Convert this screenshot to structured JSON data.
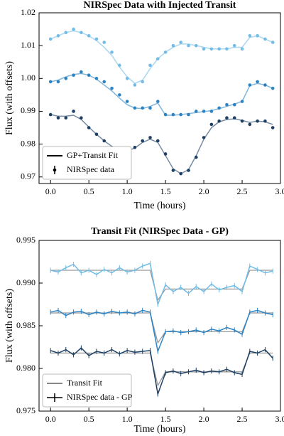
{
  "chart_data": [
    {
      "type": "scatter",
      "title": "NIRSpec Data with Injected Transit",
      "xlabel": "Time (hours)",
      "ylabel": "Flux (with offsets)",
      "x": [
        0,
        0.1,
        0.2,
        0.3,
        0.4,
        0.5,
        0.6,
        0.7,
        0.8,
        0.9,
        1.0,
        1.1,
        1.2,
        1.3,
        1.4,
        1.5,
        1.6,
        1.7,
        1.8,
        1.9,
        2.0,
        2.1,
        2.2,
        2.3,
        2.4,
        2.5,
        2.6,
        2.7,
        2.8,
        2.9
      ],
      "xlim": [
        -0.15,
        3.0
      ],
      "ylim": [
        0.968,
        1.02
      ],
      "xticks": [
        {
          "value": 0,
          "label": "0.0"
        },
        0.5,
        {
          "value": 1,
          "label": "1.0"
        },
        1.5,
        {
          "value": 2,
          "label": "2.0"
        },
        2.5,
        {
          "value": 3,
          "label": "3.0"
        }
      ],
      "yticks": [
        0.97,
        0.98,
        0.99,
        {
          "value": 1,
          "label": "1.00"
        },
        1.01,
        {
          "value": 1.02,
          "label": "1.02"
        }
      ],
      "legend": [
        {
          "label": "GP+Transit Fit",
          "color": "#000000"
        },
        {
          "label": "NIRSpec data",
          "color": "#000000"
        }
      ],
      "series": [
        {
          "color": "#72bce6",
          "values": [
            1.012,
            1.013,
            1.014,
            1.015,
            1.014,
            1.013,
            1.012,
            1.011,
            1.008,
            1.004,
            1.0,
            0.998,
            0.999,
            1.004,
            1.006,
            1.008,
            1.01,
            1.011,
            1.01,
            1.01,
            1.009,
            1.009,
            1.009,
            1.009,
            1.01,
            1.009,
            1.013,
            1.013,
            1.012,
            1.011
          ],
          "fit": [
            1.012,
            1.013,
            1.014,
            1.0145,
            1.014,
            1.013,
            1.0115,
            1.0095,
            1.007,
            1.0035,
            1.0005,
            0.9985,
            0.9995,
            1.003,
            1.006,
            1.008,
            1.0095,
            1.0105,
            1.0105,
            1.01,
            1.0095,
            1.009,
            1.009,
            1.009,
            1.0095,
            1.0095,
            1.0125,
            1.013,
            1.012,
            1.011
          ]
        },
        {
          "color": "#2b83c4",
          "values": [
            0.999,
            0.999,
            1.0,
            1.001,
            1.002,
            1.001,
            1.0,
            0.999,
            0.997,
            0.995,
            0.993,
            0.991,
            0.991,
            0.991,
            0.993,
            0.989,
            0.989,
            0.989,
            0.989,
            0.99,
            0.99,
            0.99,
            0.991,
            0.992,
            0.992,
            0.993,
            0.998,
            0.999,
            0.998,
            0.997
          ],
          "fit": [
            0.999,
            0.9995,
            1.0005,
            1.0012,
            1.0015,
            1.001,
            0.9998,
            0.998,
            0.9962,
            0.994,
            0.992,
            0.991,
            0.9908,
            0.9915,
            0.9925,
            0.9888,
            0.9888,
            0.989,
            0.9893,
            0.9896,
            0.9899,
            0.9902,
            0.9908,
            0.9915,
            0.9922,
            0.993,
            0.9978,
            0.9985,
            0.998,
            0.997
          ]
        },
        {
          "color": "#1c3f63",
          "values": [
            0.989,
            0.988,
            0.988,
            0.99,
            0.988,
            0.985,
            0.983,
            0.981,
            0.979,
            0.978,
            0.978,
            0.979,
            0.981,
            0.982,
            0.981,
            0.977,
            0.972,
            0.971,
            0.972,
            0.976,
            0.982,
            0.986,
            0.987,
            0.988,
            0.988,
            0.987,
            0.986,
            0.987,
            0.987,
            0.985
          ],
          "fit": [
            0.989,
            0.9885,
            0.9885,
            0.9888,
            0.9875,
            0.9852,
            0.983,
            0.981,
            0.9793,
            0.9783,
            0.978,
            0.9788,
            0.9805,
            0.9815,
            0.9805,
            0.9765,
            0.9725,
            0.971,
            0.9722,
            0.9765,
            0.9815,
            0.985,
            0.9868,
            0.9875,
            0.9877,
            0.9872,
            0.9866,
            0.987,
            0.9868,
            0.986
          ]
        }
      ]
    },
    {
      "type": "errorbar",
      "title": "Transit Fit (NIRSpec Data - GP)",
      "xlabel": "Time (hours)",
      "ylabel": "Flux (with offsets)",
      "x": [
        0,
        0.1,
        0.2,
        0.3,
        0.4,
        0.5,
        0.6,
        0.7,
        0.8,
        0.9,
        1.0,
        1.1,
        1.2,
        1.3,
        1.4,
        1.5,
        1.6,
        1.7,
        1.8,
        1.9,
        2.0,
        2.1,
        2.2,
        2.3,
        2.4,
        2.5,
        2.6,
        2.7,
        2.8,
        2.9
      ],
      "xlim": [
        -0.15,
        3.0
      ],
      "ylim": [
        0.975,
        0.995
      ],
      "xticks": [
        {
          "value": 0,
          "label": "0.0"
        },
        0.5,
        {
          "value": 1,
          "label": "1.0"
        },
        1.5,
        {
          "value": 2,
          "label": "2.0"
        },
        2.5,
        {
          "value": 3,
          "label": "3.0"
        }
      ],
      "yticks": [
        0.975,
        {
          "value": 0.98,
          "label": "0.980"
        },
        0.985,
        {
          "value": 0.99,
          "label": "0.990"
        },
        0.995
      ],
      "legend": [
        {
          "label": "Transit Fit",
          "color": "#888888"
        },
        {
          "label": "NIRSpec data - GP",
          "color": "#000000"
        }
      ],
      "series": [
        {
          "color": "#72bce6",
          "error": 0.0003,
          "values": [
            0.9915,
            0.9913,
            0.9918,
            0.9922,
            0.9912,
            0.9915,
            0.991,
            0.9916,
            0.9912,
            0.9918,
            0.9913,
            0.9915,
            0.992,
            0.9923,
            0.9875,
            0.9898,
            0.989,
            0.9895,
            0.9888,
            0.9896,
            0.989,
            0.9899,
            0.9892,
            0.9895,
            0.9897,
            0.989,
            0.992,
            0.9916,
            0.9912,
            0.9914
          ],
          "fit": [
            0.9915,
            0.9915,
            0.9915,
            0.9915,
            0.9915,
            0.9915,
            0.9915,
            0.9915,
            0.9915,
            0.9915,
            0.9915,
            0.9915,
            0.9915,
            0.9915,
            0.988,
            0.9893,
            0.9893,
            0.9893,
            0.9893,
            0.9893,
            0.9893,
            0.9893,
            0.9893,
            0.9893,
            0.9893,
            0.9893,
            0.9915,
            0.9915,
            0.9915,
            0.9915
          ]
        },
        {
          "color": "#2b83c4",
          "error": 0.0003,
          "values": [
            0.9866,
            0.9868,
            0.9862,
            0.9866,
            0.9867,
            0.9863,
            0.9866,
            0.9864,
            0.9867,
            0.9865,
            0.9866,
            0.9864,
            0.9868,
            0.9866,
            0.982,
            0.9843,
            0.9844,
            0.9842,
            0.9843,
            0.9845,
            0.9842,
            0.9846,
            0.9844,
            0.9848,
            0.9845,
            0.984,
            0.9866,
            0.9868,
            0.9865,
            0.9863
          ],
          "fit": [
            0.9865,
            0.9865,
            0.9865,
            0.9865,
            0.9865,
            0.9865,
            0.9865,
            0.9865,
            0.9865,
            0.9865,
            0.9865,
            0.9865,
            0.9865,
            0.9865,
            0.983,
            0.9843,
            0.9843,
            0.9843,
            0.9843,
            0.9843,
            0.9843,
            0.9843,
            0.9843,
            0.9843,
            0.9843,
            0.9843,
            0.9865,
            0.9865,
            0.9865,
            0.9865
          ]
        },
        {
          "color": "#1c3f63",
          "error": 0.0003,
          "values": [
            0.9821,
            0.9818,
            0.9822,
            0.9816,
            0.9824,
            0.9815,
            0.982,
            0.9818,
            0.9822,
            0.9817,
            0.9821,
            0.9819,
            0.982,
            0.9821,
            0.977,
            0.9795,
            0.9797,
            0.9794,
            0.9796,
            0.9798,
            0.9795,
            0.9797,
            0.9796,
            0.9799,
            0.9795,
            0.9793,
            0.982,
            0.9818,
            0.9822,
            0.9812
          ],
          "fit": [
            0.9818,
            0.9818,
            0.9818,
            0.9818,
            0.9818,
            0.9818,
            0.9818,
            0.9818,
            0.9818,
            0.9818,
            0.9818,
            0.9818,
            0.9818,
            0.9818,
            0.978,
            0.9796,
            0.9796,
            0.9796,
            0.9796,
            0.9796,
            0.9796,
            0.9796,
            0.9796,
            0.9796,
            0.9796,
            0.9796,
            0.9818,
            0.9818,
            0.9818,
            0.9818
          ]
        }
      ]
    }
  ]
}
